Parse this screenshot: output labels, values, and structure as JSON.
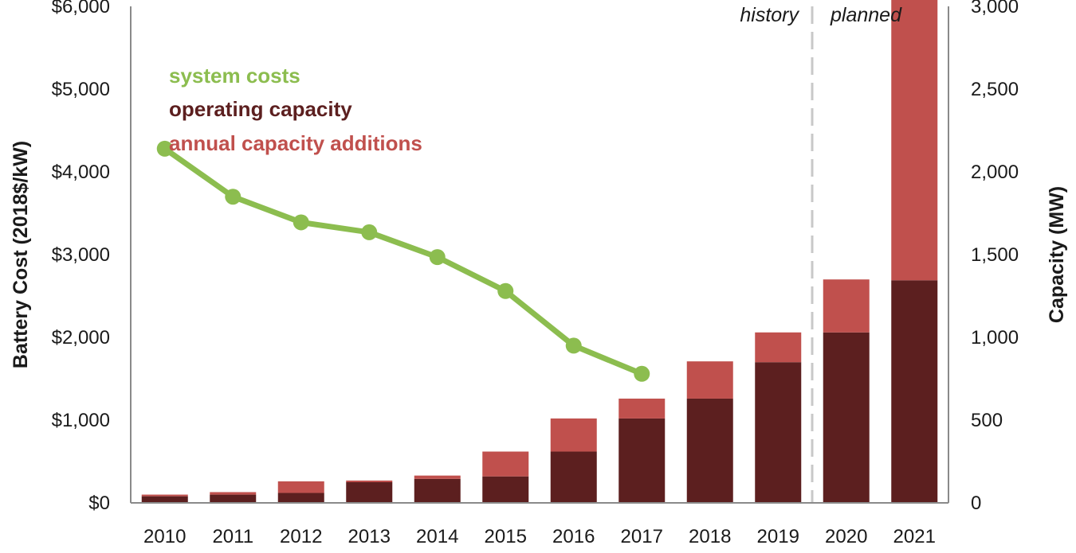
{
  "chart_data": {
    "type": "bar",
    "categories": [
      "2010",
      "2011",
      "2012",
      "2013",
      "2014",
      "2015",
      "2016",
      "2017",
      "2018",
      "2019",
      "2020",
      "2021"
    ],
    "series": [
      {
        "name": "operating capacity",
        "axis": "right",
        "color": "#5c1f1f",
        "values": [
          40,
          50,
          60,
          125,
          145,
          160,
          310,
          510,
          630,
          850,
          1030,
          1345
        ]
      },
      {
        "name": "annual capacity additions",
        "axis": "right",
        "color": "#c0504d",
        "values": [
          10,
          15,
          70,
          10,
          20,
          150,
          200,
          120,
          225,
          180,
          320,
          1725
        ]
      },
      {
        "name": "system costs",
        "type": "line",
        "axis": "left",
        "color": "#8cbd4f",
        "x": [
          "2010",
          "2011",
          "2012",
          "2013",
          "2014",
          "2015",
          "2016",
          "2017"
        ],
        "values": [
          4280,
          3700,
          3390,
          3270,
          2970,
          2560,
          1900,
          1560
        ]
      }
    ],
    "title": "",
    "xlabel": "",
    "ylabel_left": "Battery Cost (2018$/kW)",
    "ylabel_right": "Capacity (MW)",
    "ylim_left": [
      0,
      6000
    ],
    "ylim_right": [
      0,
      3000
    ],
    "left_ticks": [
      "$0",
      "$1,000",
      "$2,000",
      "$3,000",
      "$4,000",
      "$5,000",
      "$6,000"
    ],
    "right_ticks": [
      "0",
      "500",
      "1,000",
      "1,500",
      "2,000",
      "2,500",
      "3,000"
    ],
    "legend": {
      "placement": "top-left",
      "entries": [
        {
          "label": "system costs",
          "color": "#8cbd4f"
        },
        {
          "label": "operating capacity",
          "color": "#5c1f1f"
        },
        {
          "label": "annual capacity additions",
          "color": "#c0504d"
        }
      ]
    },
    "period_labels": {
      "history": "history",
      "planned": "planned"
    },
    "grid": false
  }
}
